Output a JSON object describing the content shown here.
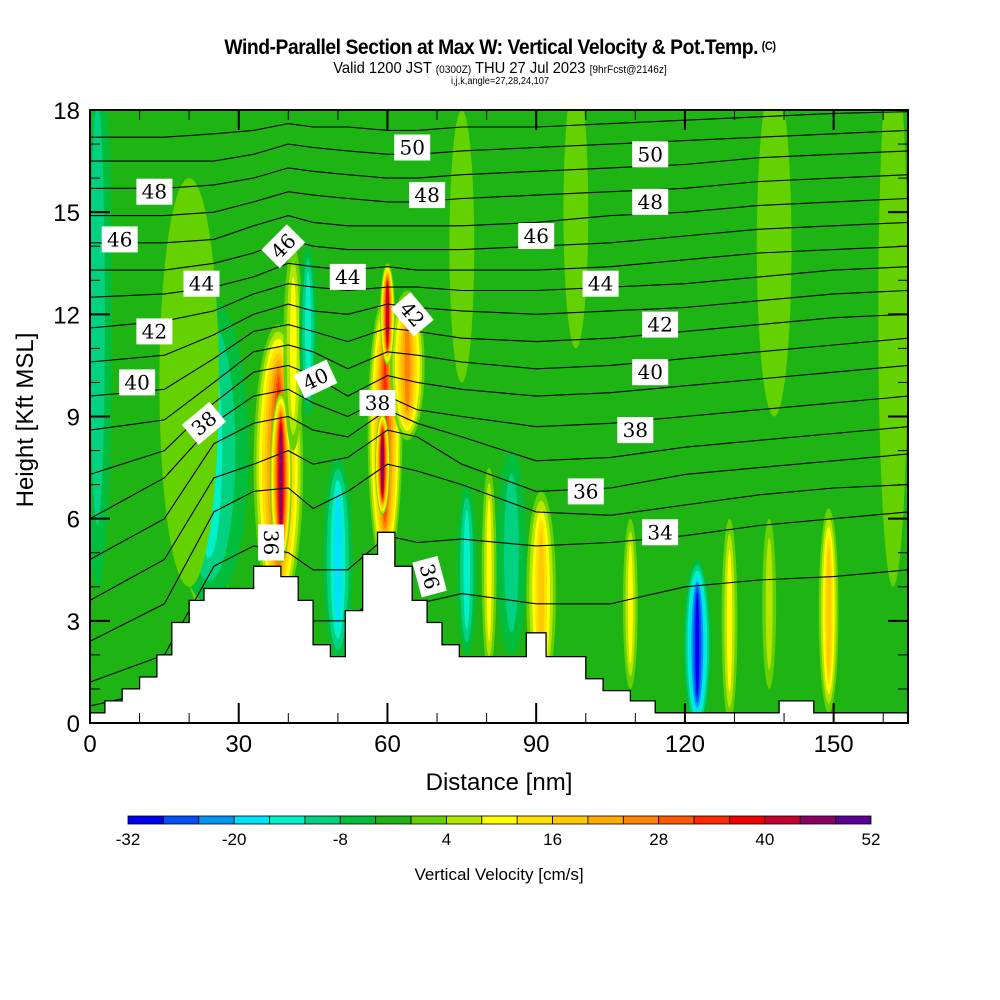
{
  "header": {
    "title": "Wind-Parallel Section at Max W: Vertical Velocity & Pot.Temp.",
    "copyright": "(C)",
    "valid_prefix": "Valid 1200 JST",
    "valid_utc": "(0300Z)",
    "valid_date": "THU 27 Jul 2023",
    "forecast": "[9hrFcst@2146z]",
    "indices": "i,j,k,angle=27,28,24,107"
  },
  "chart_data": {
    "type": "heatmap",
    "title": "Wind-Parallel Section at Max W: Vertical Velocity & Pot.Temp.",
    "xlabel": "Distance [nm]",
    "ylabel": "Height [Kft MSL]",
    "xlim": [
      0,
      165
    ],
    "ylim": [
      0,
      18
    ],
    "xticks": [
      "0",
      "30",
      "60",
      "90",
      "120",
      "150"
    ],
    "xtick_values": [
      0,
      30,
      60,
      90,
      120,
      150
    ],
    "xminor_step": 10,
    "yticks": [
      "0",
      "3",
      "6",
      "9",
      "12",
      "15",
      "18"
    ],
    "ytick_values": [
      0,
      3,
      6,
      9,
      12,
      15,
      18
    ],
    "yminor_step": 1,
    "colorbar": {
      "label": "Vertical Velocity [cm/s]",
      "min": -32,
      "max": 52,
      "step": 4,
      "tick_labels": [
        "-32",
        "-20",
        "-8",
        "4",
        "16",
        "28",
        "40",
        "52"
      ],
      "tick_values": [
        -32,
        -20,
        -8,
        4,
        16,
        28,
        40,
        52
      ],
      "colors": [
        "#0000f0",
        "#0050f5",
        "#0096f5",
        "#00e1fa",
        "#00f0c8",
        "#00d282",
        "#00be3c",
        "#1eb414",
        "#64d200",
        "#b4e600",
        "#ffff00",
        "#ffe100",
        "#ffc800",
        "#ffaa00",
        "#ff8200",
        "#ff5a00",
        "#ff2800",
        "#f00000",
        "#c80032",
        "#8c0064",
        "#5a0096"
      ]
    },
    "background_value": -2,
    "terrain": {
      "distance_nm": [
        0,
        3,
        6.5,
        10,
        13.5,
        16.5,
        20,
        23,
        26.5,
        33,
        38.5,
        42,
        45,
        48.5,
        51.5,
        55,
        58,
        61.5,
        65,
        68,
        71,
        74.5,
        78,
        88,
        92,
        100,
        103.5,
        109,
        114,
        120,
        139,
        146,
        165
      ],
      "height_kft": [
        0.3,
        0.65,
        1.0,
        1.35,
        2.0,
        2.95,
        3.6,
        3.95,
        3.95,
        4.6,
        4.3,
        3.6,
        2.3,
        1.95,
        3.3,
        4.95,
        5.6,
        4.6,
        3.6,
        2.95,
        2.3,
        1.95,
        1.95,
        2.65,
        1.95,
        1.3,
        0.95,
        0.65,
        0.3,
        0.3,
        0.65,
        0.3,
        0.3
      ]
    },
    "vertical_velocity_features": [
      {
        "x": 1.5,
        "y": 12,
        "rx": 3,
        "ry": 8,
        "value": -10
      },
      {
        "x": 24,
        "y": 6.3,
        "rx": 5.5,
        "ry": 3.2,
        "value": 24
      },
      {
        "x": 24,
        "y": 8,
        "rx": 8,
        "ry": 4.5,
        "value": -16
      },
      {
        "x": 38,
        "y": 7.5,
        "rx": 5,
        "ry": 4.2,
        "value": 34
      },
      {
        "x": 38.5,
        "y": 7.2,
        "rx": 2.2,
        "ry": 2.5,
        "value": 46
      },
      {
        "x": 41,
        "y": 11,
        "rx": 2,
        "ry": 3,
        "value": 10
      },
      {
        "x": 44,
        "y": 11.5,
        "rx": 1.8,
        "ry": 2.5,
        "value": -16
      },
      {
        "x": 50,
        "y": 4.8,
        "rx": 3,
        "ry": 3,
        "value": -20
      },
      {
        "x": 59.5,
        "y": 8.5,
        "rx": 3.5,
        "ry": 4,
        "value": 34
      },
      {
        "x": 59,
        "y": 7.6,
        "rx": 1.5,
        "ry": 1.5,
        "value": 48
      },
      {
        "x": 64,
        "y": 10.5,
        "rx": 3.5,
        "ry": 2.2,
        "value": 28
      },
      {
        "x": 76,
        "y": 4.5,
        "rx": 2,
        "ry": 2.5,
        "value": -14
      },
      {
        "x": 80.5,
        "y": 4.5,
        "rx": 1.5,
        "ry": 3,
        "value": 12
      },
      {
        "x": 85,
        "y": 5,
        "rx": 3,
        "ry": 3,
        "value": -12
      },
      {
        "x": 91,
        "y": 3.8,
        "rx": 3,
        "ry": 3,
        "value": 20
      },
      {
        "x": 109,
        "y": 3.5,
        "rx": 1.5,
        "ry": 2.5,
        "value": 12
      },
      {
        "x": 122.5,
        "y": 2.3,
        "rx": 2.8,
        "ry": 2.5,
        "value": -30
      },
      {
        "x": 129,
        "y": 3,
        "rx": 1.6,
        "ry": 3,
        "value": 12
      },
      {
        "x": 137,
        "y": 3.5,
        "rx": 1.4,
        "ry": 2.5,
        "value": 8
      },
      {
        "x": 149,
        "y": 3.3,
        "rx": 2,
        "ry": 3,
        "value": 18
      },
      {
        "x": 138,
        "y": 14,
        "rx": 3.5,
        "ry": 5,
        "value": 2
      },
      {
        "x": 98,
        "y": 15,
        "rx": 2.5,
        "ry": 4,
        "value": 2
      },
      {
        "x": 75,
        "y": 14,
        "rx": 2.5,
        "ry": 4,
        "value": 2
      },
      {
        "x": 20,
        "y": 10,
        "rx": 6,
        "ry": 6,
        "value": 2
      },
      {
        "x": 162,
        "y": 12,
        "rx": 3,
        "ry": 8,
        "value": 2
      },
      {
        "x": 60,
        "y": 12,
        "rx": 1.5,
        "ry": 1.5,
        "value": 44
      }
    ],
    "theta_contours": {
      "x": [
        0,
        15,
        25,
        33,
        40,
        45,
        52,
        60,
        66,
        75,
        90,
        105,
        120,
        135,
        150,
        165
      ],
      "levels": [
        {
          "value": 33,
          "y": [
            0.5,
            1.0,
            2.0,
            3.0,
            3.5,
            3.0,
            3.0,
            4.0,
            3.5,
            3.8,
            3.5,
            3.5,
            4.0,
            4.2,
            4.3,
            4.5
          ]
        },
        {
          "value": 34,
          "y": [
            1.2,
            2.0,
            4.6,
            5.2,
            5.0,
            4.5,
            4.5,
            5.5,
            5.3,
            5.4,
            5.2,
            5.3,
            5.5,
            5.8,
            6.0,
            6.2
          ]
        },
        {
          "value": 35,
          "y": [
            2.4,
            3.5,
            6.2,
            6.8,
            6.9,
            6.3,
            6.8,
            7.6,
            7.4,
            7.0,
            6.2,
            6.1,
            6.4,
            6.7,
            6.9,
            7.0
          ]
        },
        {
          "value": 36,
          "y": [
            3.6,
            4.8,
            7.2,
            7.6,
            8.0,
            7.6,
            7.8,
            8.6,
            8.4,
            7.6,
            6.8,
            6.9,
            7.3,
            7.5,
            7.7,
            7.9
          ]
        },
        {
          "value": 37,
          "y": [
            4.8,
            6.0,
            8.2,
            8.8,
            9.0,
            8.6,
            8.4,
            9.2,
            8.8,
            8.4,
            7.7,
            7.8,
            8.1,
            8.3,
            8.5,
            8.7
          ]
        },
        {
          "value": 38,
          "y": [
            6.0,
            7.2,
            8.8,
            9.6,
            9.8,
            9.4,
            9.0,
            9.6,
            9.2,
            9.0,
            8.7,
            8.8,
            9.0,
            9.2,
            9.4,
            9.6
          ]
        },
        {
          "value": 39,
          "y": [
            7.3,
            8.0,
            9.4,
            10.3,
            10.5,
            10.2,
            9.6,
            10.2,
            10.0,
            9.8,
            9.6,
            9.7,
            9.9,
            10.1,
            10.3,
            10.5
          ]
        },
        {
          "value": 40,
          "y": [
            8.6,
            8.9,
            10.0,
            10.9,
            11.1,
            10.9,
            10.4,
            10.9,
            10.8,
            10.6,
            10.4,
            10.5,
            10.7,
            10.9,
            11.1,
            11.3
          ]
        },
        {
          "value": 41,
          "y": [
            9.6,
            9.8,
            10.7,
            11.5,
            11.7,
            11.5,
            11.2,
            11.6,
            11.5,
            11.3,
            11.2,
            11.3,
            11.5,
            11.7,
            11.9,
            12.0
          ]
        },
        {
          "value": 42,
          "y": [
            10.6,
            10.8,
            11.4,
            12.0,
            12.3,
            12.1,
            12.0,
            12.3,
            12.2,
            12.1,
            12.0,
            12.1,
            12.2,
            12.4,
            12.6,
            12.7
          ]
        },
        {
          "value": 43,
          "y": [
            11.6,
            11.8,
            12.1,
            12.6,
            12.9,
            12.8,
            12.7,
            12.8,
            12.8,
            12.7,
            12.7,
            12.8,
            12.9,
            13.1,
            13.3,
            13.4
          ]
        },
        {
          "value": 44,
          "y": [
            12.5,
            12.6,
            12.8,
            13.1,
            13.5,
            13.4,
            13.3,
            13.4,
            13.3,
            13.3,
            13.3,
            13.4,
            13.6,
            13.8,
            13.9,
            14.0
          ]
        },
        {
          "value": 45,
          "y": [
            13.3,
            13.3,
            13.5,
            13.8,
            14.2,
            14.0,
            13.9,
            13.9,
            13.9,
            13.9,
            14.0,
            14.1,
            14.3,
            14.5,
            14.6,
            14.7
          ]
        },
        {
          "value": 46,
          "y": [
            14.1,
            14.1,
            14.2,
            14.6,
            14.9,
            14.7,
            14.6,
            14.6,
            14.6,
            14.6,
            14.7,
            14.9,
            15.0,
            15.2,
            15.3,
            15.4
          ]
        },
        {
          "value": 47,
          "y": [
            14.9,
            14.9,
            15.0,
            15.3,
            15.6,
            15.5,
            15.4,
            15.3,
            15.3,
            15.4,
            15.5,
            15.6,
            15.7,
            15.9,
            16.0,
            16.1
          ]
        },
        {
          "value": 48,
          "y": [
            15.7,
            15.7,
            15.8,
            16.0,
            16.3,
            16.2,
            16.1,
            16.0,
            16.0,
            16.1,
            16.2,
            16.3,
            16.4,
            16.6,
            16.7,
            16.8
          ]
        },
        {
          "value": 49,
          "y": [
            16.5,
            16.5,
            16.5,
            16.7,
            17.0,
            16.9,
            16.8,
            16.7,
            16.7,
            16.8,
            16.9,
            17.0,
            17.1,
            17.2,
            17.3,
            17.4
          ]
        },
        {
          "value": 50,
          "y": [
            17.2,
            17.2,
            17.3,
            17.4,
            17.6,
            17.5,
            17.5,
            17.4,
            17.4,
            17.5,
            17.5,
            17.6,
            17.7,
            17.8,
            17.9,
            17.95
          ]
        }
      ]
    },
    "contour_labels": [
      {
        "text": "50",
        "x": 65,
        "y": 16.9,
        "angle": 0
      },
      {
        "text": "50",
        "x": 113,
        "y": 16.7,
        "angle": 0
      },
      {
        "text": "48",
        "x": 13,
        "y": 15.6,
        "angle": 0
      },
      {
        "text": "48",
        "x": 68,
        "y": 15.5,
        "angle": 0
      },
      {
        "text": "48",
        "x": 113,
        "y": 15.3,
        "angle": 0
      },
      {
        "text": "46",
        "x": 6,
        "y": 14.2,
        "angle": 0
      },
      {
        "text": "46",
        "x": 39,
        "y": 14.0,
        "angle": -45
      },
      {
        "text": "46",
        "x": 90,
        "y": 14.3,
        "angle": 0
      },
      {
        "text": "44",
        "x": 22.5,
        "y": 12.9,
        "angle": 0
      },
      {
        "text": "44",
        "x": 52,
        "y": 13.1,
        "angle": 0
      },
      {
        "text": "44",
        "x": 103,
        "y": 12.9,
        "angle": 0
      },
      {
        "text": "42",
        "x": 13,
        "y": 11.5,
        "angle": 0
      },
      {
        "text": "42",
        "x": 65,
        "y": 12.0,
        "angle": 50
      },
      {
        "text": "42",
        "x": 115,
        "y": 11.7,
        "angle": 0
      },
      {
        "text": "40",
        "x": 9.5,
        "y": 10.0,
        "angle": 0
      },
      {
        "text": "40",
        "x": 45.5,
        "y": 10.1,
        "angle": -25
      },
      {
        "text": "40",
        "x": 113,
        "y": 10.3,
        "angle": 0
      },
      {
        "text": "38",
        "x": 23,
        "y": 8.8,
        "angle": -40
      },
      {
        "text": "38",
        "x": 58,
        "y": 9.4,
        "angle": 0
      },
      {
        "text": "38",
        "x": 110,
        "y": 8.6,
        "angle": 0
      },
      {
        "text": "36",
        "x": 100,
        "y": 6.8,
        "angle": 0
      },
      {
        "text": "36",
        "x": 36.5,
        "y": 5.3,
        "angle": 90
      },
      {
        "text": "36",
        "x": 68.5,
        "y": 4.3,
        "angle": 75
      },
      {
        "text": "34",
        "x": 115,
        "y": 5.6,
        "angle": 0
      }
    ]
  }
}
